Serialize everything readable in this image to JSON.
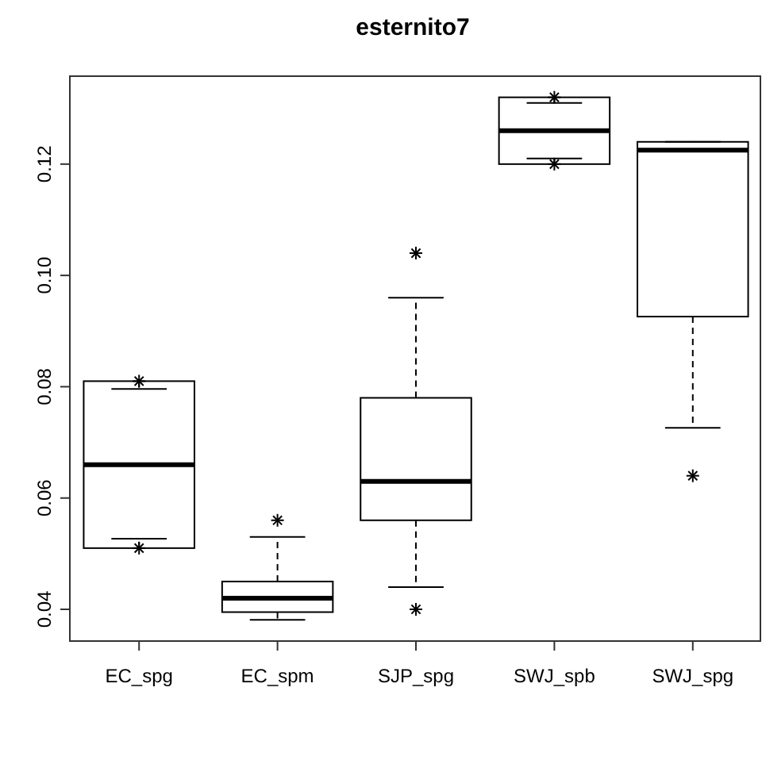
{
  "chart_data": {
    "type": "box",
    "title": "esternito7",
    "categories": [
      "EC_spg",
      "EC_spm",
      "SJP_spg",
      "SWJ_spb",
      "SWJ_spg"
    ],
    "boxes": [
      {
        "low": 0.0527,
        "q1": 0.051,
        "median": 0.066,
        "q3": 0.081,
        "high": 0.0796,
        "outliers": [
          0.081,
          0.051
        ]
      },
      {
        "low": 0.0381,
        "q1": 0.0395,
        "median": 0.042,
        "q3": 0.045,
        "high": 0.053,
        "outliers": [
          0.056
        ]
      },
      {
        "low": 0.044,
        "q1": 0.056,
        "median": 0.063,
        "q3": 0.078,
        "high": 0.096,
        "outliers": [
          0.104,
          0.04
        ]
      },
      {
        "low": 0.121,
        "q1": 0.12,
        "median": 0.126,
        "q3": 0.132,
        "high": 0.131,
        "outliers": [
          0.132,
          0.12
        ]
      },
      {
        "low": 0.0726,
        "q1": 0.0926,
        "median": 0.1225,
        "q3": 0.124,
        "high": 0.124,
        "outliers": [
          0.064
        ]
      }
    ],
    "color": "#000000",
    "marker": "star",
    "ylim": [
      0.0343,
      0.1358
    ],
    "yticks": [
      {
        "value": 0.04,
        "label": "0.04"
      },
      {
        "value": 0.06,
        "label": "0.06"
      },
      {
        "value": 0.08,
        "label": "0.08"
      },
      {
        "value": 0.1,
        "label": "0.10"
      },
      {
        "value": 0.12,
        "label": "0.12"
      }
    ],
    "grid": false
  }
}
